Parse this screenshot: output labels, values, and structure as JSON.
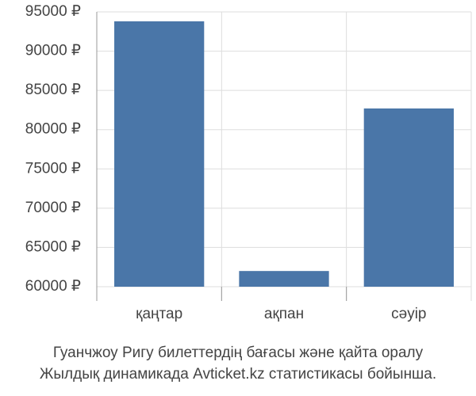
{
  "chart_data": {
    "type": "bar",
    "title": "Гуанчжоу Ригу билеттердің бағасы және қайта оралу",
    "subtitle": "Жылдық динамикада Avticket.kz статистикасы бойынша.",
    "categories": [
      "қаңтар",
      "ақпан",
      "сәуір"
    ],
    "values": [
      93800,
      62000,
      82700
    ],
    "color": "#4a76a8",
    "ylim": [
      60000,
      95000
    ],
    "yticks": [
      {
        "value": 60000,
        "label": "60000 ₽"
      },
      {
        "value": 65000,
        "label": "65000 ₽"
      },
      {
        "value": 70000,
        "label": "70000 ₽"
      },
      {
        "value": 75000,
        "label": "75000 ₽"
      },
      {
        "value": 80000,
        "label": "80000 ₽"
      },
      {
        "value": 85000,
        "label": "85000 ₽"
      },
      {
        "value": 90000,
        "label": "90000 ₽"
      },
      {
        "value": 95000,
        "label": "95000 ₽"
      }
    ],
    "grid": true
  }
}
